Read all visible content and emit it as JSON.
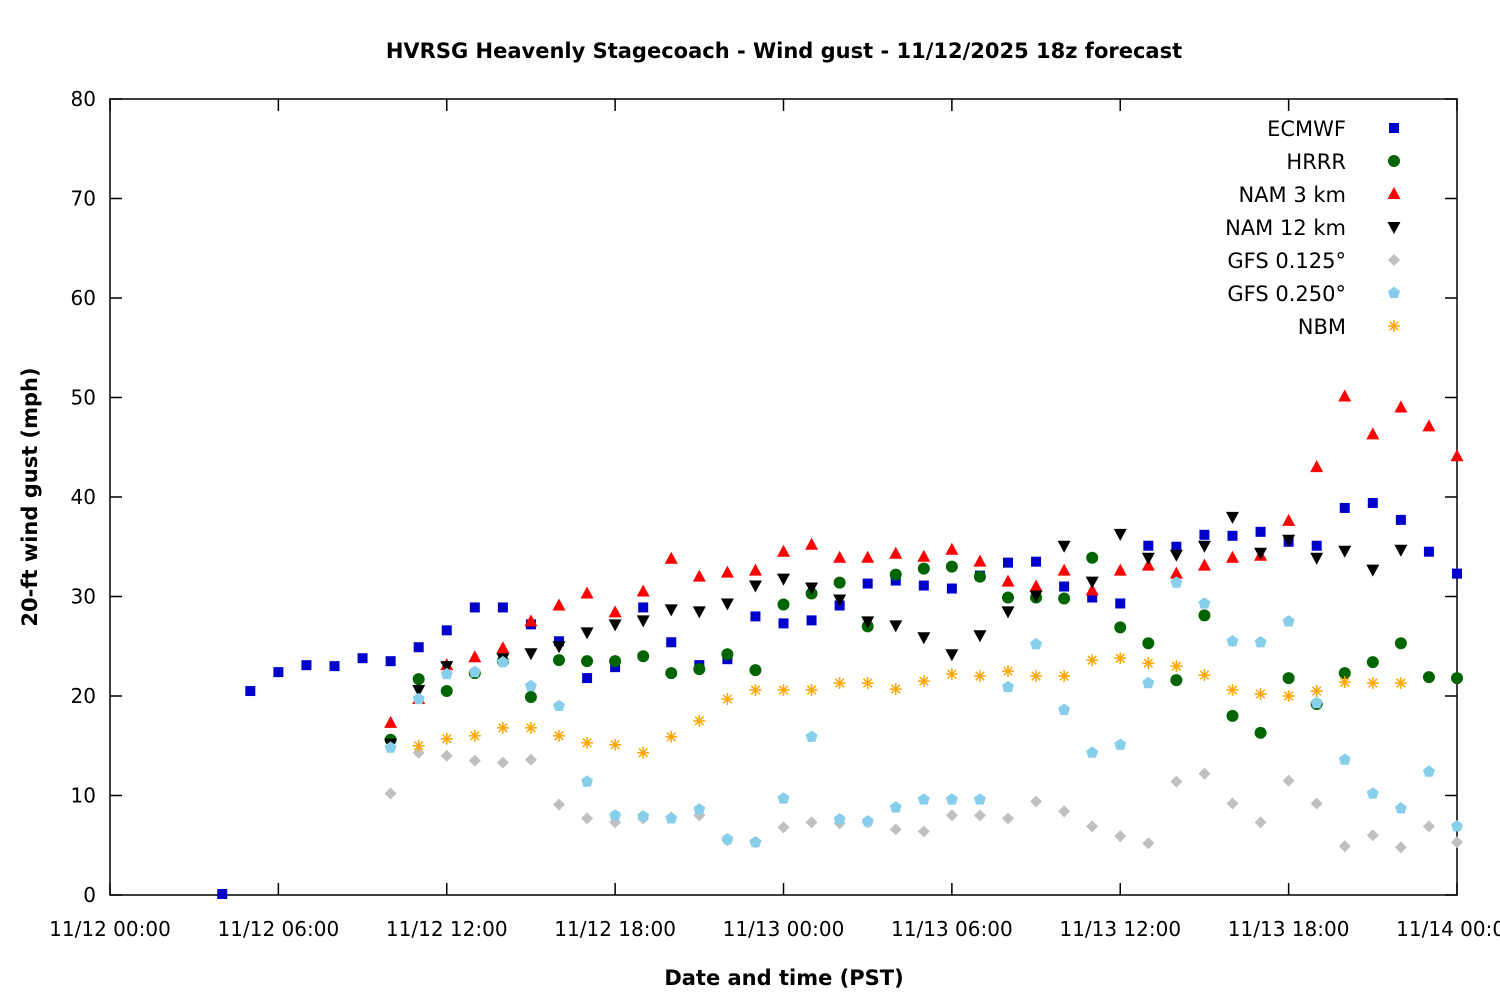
{
  "chart_data": {
    "type": "scatter",
    "title": "HVRSG Heavenly Stagecoach - Wind gust - 11/12/2025 18z forecast",
    "xlabel": "Date and time (PST)",
    "ylabel": "20-ft wind gust (mph)",
    "xlim": [
      "11/12 00:00",
      "11/14 00:00"
    ],
    "ylim": [
      0,
      80
    ],
    "x_ticks": [
      "11/12 00:00",
      "11/12 06:00",
      "11/12 12:00",
      "11/12 18:00",
      "11/13 00:00",
      "11/13 06:00",
      "11/13 12:00",
      "11/13 18:00",
      "11/14 00:00"
    ],
    "y_ticks": [
      0,
      10,
      20,
      30,
      40,
      50,
      60,
      70,
      80
    ],
    "grid": false,
    "legend_position": "top-right",
    "x": [
      "11/12 04:00",
      "11/12 05:00",
      "11/12 06:00",
      "11/12 07:00",
      "11/12 08:00",
      "11/12 09:00",
      "11/12 10:00",
      "11/12 11:00",
      "11/12 12:00",
      "11/12 13:00",
      "11/12 14:00",
      "11/12 15:00",
      "11/12 16:00",
      "11/12 17:00",
      "11/12 18:00",
      "11/12 19:00",
      "11/12 20:00",
      "11/12 21:00",
      "11/12 22:00",
      "11/12 23:00",
      "11/13 00:00",
      "11/13 01:00",
      "11/13 02:00",
      "11/13 03:00",
      "11/13 04:00",
      "11/13 05:00",
      "11/13 06:00",
      "11/13 07:00",
      "11/13 08:00",
      "11/13 09:00",
      "11/13 10:00",
      "11/13 11:00",
      "11/13 12:00",
      "11/13 13:00",
      "11/13 14:00",
      "11/13 15:00",
      "11/13 16:00",
      "11/13 17:00",
      "11/13 18:00",
      "11/13 19:00",
      "11/13 20:00",
      "11/13 21:00",
      "11/13 22:00",
      "11/13 23:00",
      "11/14 00:00"
    ],
    "series": [
      {
        "name": "ECMWF",
        "marker": "square",
        "color": "#0000cc",
        "values": [
          0.1,
          20.5,
          22.4,
          23.1,
          23.0,
          23.8,
          23.5,
          24.9,
          26.6,
          28.9,
          28.9,
          27.2,
          25.5,
          21.8,
          22.9,
          28.9,
          25.4,
          23.1,
          23.7,
          28.0,
          27.3,
          27.6,
          29.1,
          31.3,
          31.6,
          31.1,
          30.8,
          32.1,
          33.4,
          33.5,
          31.0,
          29.9,
          29.3,
          35.1,
          35.0,
          36.2,
          36.1,
          36.5,
          35.5,
          35.1,
          38.9,
          39.4,
          37.7,
          34.5,
          32.3
        ]
      },
      {
        "name": "HRRR",
        "marker": "circle",
        "color": "#006400",
        "values": [
          null,
          null,
          null,
          null,
          null,
          null,
          15.6,
          21.7,
          20.5,
          22.3,
          23.5,
          19.9,
          23.6,
          23.5,
          23.5,
          24.0,
          22.3,
          22.7,
          24.2,
          22.6,
          29.2,
          30.3,
          31.4,
          27.0,
          32.2,
          32.8,
          33.0,
          32.0,
          29.9,
          29.9,
          29.8,
          33.9,
          26.9,
          25.3,
          21.6,
          28.1,
          18.0,
          16.3,
          21.8,
          19.2,
          22.3,
          23.4,
          25.3,
          21.9,
          21.8
        ]
      },
      {
        "name": "NAM 3 km",
        "marker": "triangle-up",
        "color": "#ff0000",
        "values": [
          null,
          null,
          null,
          null,
          null,
          null,
          17.3,
          19.7,
          23.1,
          23.9,
          24.8,
          27.5,
          29.1,
          30.3,
          28.4,
          30.5,
          33.8,
          32.0,
          32.4,
          32.6,
          34.5,
          35.2,
          33.9,
          33.9,
          34.3,
          34.0,
          34.7,
          33.5,
          31.5,
          31.0,
          32.6,
          30.6,
          32.6,
          33.1,
          32.3,
          33.1,
          33.9,
          34.1,
          37.6,
          43.0,
          50.1,
          46.3,
          49.0,
          47.1,
          44.1
        ]
      },
      {
        "name": "NAM 12 km",
        "marker": "triangle-down",
        "color": "#000000",
        "values": [
          null,
          null,
          null,
          null,
          null,
          null,
          15.2,
          20.6,
          23.0,
          null,
          23.8,
          24.3,
          25.0,
          26.4,
          27.2,
          27.6,
          28.7,
          28.5,
          29.3,
          31.1,
          31.8,
          30.9,
          29.7,
          27.5,
          27.1,
          25.9,
          24.2,
          26.1,
          28.5,
          30.1,
          35.1,
          31.5,
          36.3,
          33.9,
          34.2,
          35.1,
          38.0,
          34.4,
          35.7,
          33.9,
          34.6,
          32.7,
          34.7,
          null,
          null
        ]
      },
      {
        "name": "GFS 0.125°",
        "marker": "diamond",
        "color": "#c0c0c0",
        "values": [
          null,
          null,
          null,
          null,
          null,
          null,
          10.2,
          14.3,
          14.0,
          13.5,
          13.3,
          13.6,
          9.1,
          7.7,
          7.3,
          7.7,
          7.8,
          8.0,
          5.5,
          5.3,
          6.8,
          7.3,
          7.2,
          7.3,
          6.6,
          6.4,
          8.0,
          8.0,
          7.7,
          9.4,
          8.4,
          6.9,
          5.9,
          5.2,
          11.4,
          12.2,
          9.2,
          7.3,
          11.5,
          9.2,
          4.9,
          6.0,
          4.8,
          6.9,
          5.3
        ]
      },
      {
        "name": "GFS 0.250°",
        "marker": "pentagon",
        "color": "#87ceeb",
        "values": [
          null,
          null,
          null,
          null,
          null,
          null,
          14.8,
          19.7,
          22.2,
          22.4,
          23.4,
          21.0,
          19.0,
          11.4,
          8.0,
          7.9,
          7.7,
          8.6,
          5.6,
          5.3,
          9.7,
          15.9,
          7.6,
          7.4,
          8.8,
          9.6,
          9.6,
          9.6,
          20.9,
          25.2,
          18.6,
          14.3,
          15.1,
          21.3,
          31.4,
          29.3,
          25.5,
          25.4,
          27.5,
          19.3,
          13.6,
          10.2,
          8.7,
          12.4,
          6.9
        ]
      },
      {
        "name": "NBM",
        "marker": "asterisk",
        "color": "#ffa500",
        "values": [
          null,
          null,
          null,
          null,
          null,
          null,
          null,
          15.0,
          15.7,
          16.0,
          16.8,
          16.8,
          16.0,
          15.3,
          15.1,
          14.3,
          15.9,
          17.5,
          19.7,
          20.6,
          20.6,
          20.6,
          21.3,
          21.3,
          20.7,
          21.5,
          22.2,
          22.0,
          22.5,
          22.0,
          22.0,
          23.6,
          23.8,
          23.3,
          23.0,
          22.1,
          20.6,
          20.2,
          20.0,
          20.5,
          21.4,
          21.3,
          21.3,
          null,
          null
        ]
      }
    ]
  }
}
